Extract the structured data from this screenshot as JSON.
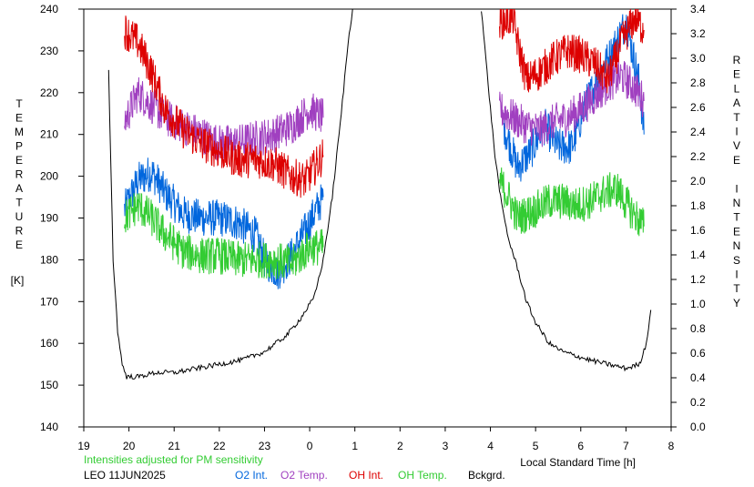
{
  "chart_data": {
    "type": "line",
    "left_axis": {
      "label_letters": [
        "T",
        "E",
        "M",
        "P",
        "E",
        "R",
        "A",
        "T",
        "U",
        "R",
        "E"
      ],
      "unit": "[K]",
      "ylim": [
        140,
        240
      ],
      "ticks": [
        "140",
        "150",
        "160",
        "170",
        "180",
        "190",
        "200",
        "210",
        "220",
        "230",
        "240"
      ]
    },
    "right_axis": {
      "label_words": [
        [
          "R",
          "E",
          "L",
          "A",
          "T",
          "I",
          "V",
          "E"
        ],
        [
          "I",
          "N",
          "T",
          "E",
          "N",
          "S",
          "I",
          "T",
          "Y"
        ]
      ],
      "ylim": [
        0.0,
        3.4
      ],
      "ticks": [
        "0.0",
        "0.2",
        "0.4",
        "0.6",
        "0.8",
        "1.0",
        "1.2",
        "1.4",
        "1.6",
        "1.8",
        "2.0",
        "2.2",
        "2.4",
        "2.6",
        "2.8",
        "3.0",
        "3.2",
        "3.4"
      ]
    },
    "x_axis": {
      "label": "Local Standard Time [h]",
      "ticks": [
        "19",
        "20",
        "21",
        "22",
        "23",
        "0",
        "1",
        "2",
        "3",
        "4",
        "5",
        "6",
        "7",
        "8"
      ],
      "xlim": [
        19,
        32
      ]
    },
    "note": "Intensities adjusted for PM sensitivity",
    "station_date": "LEO 11JUN2025",
    "series": [
      {
        "name": "O2 Int.",
        "color": "#0066dd",
        "axis": "left",
        "segments": [
          {
            "x": [
              19.9,
              20.2,
              20.5,
              20.8,
              21.2,
              21.6,
              22.0,
              22.4,
              22.8,
              23.0,
              23.3,
              23.6,
              23.9,
              24.2,
              24.3
            ],
            "y": [
              192,
              199,
              201,
              196,
              191,
              190,
              190,
              189,
              186,
              180,
              177,
              181,
              187,
              193,
              195
            ]
          },
          {
            "x": [
              28.3,
              28.6,
              28.9,
              29.2,
              29.5,
              29.8,
              30.1,
              30.4,
              30.7,
              31.0,
              31.3,
              31.4
            ],
            "y": [
              212,
              202,
              206,
              212,
              207,
              207,
              217,
              224,
              230,
              237,
              222,
              210
            ]
          }
        ]
      },
      {
        "name": "O2 Temp.",
        "color": "#a040c0",
        "axis": "left",
        "segments": [
          {
            "x": [
              19.9,
              20.2,
              20.5,
              20.8,
              21.2,
              21.6,
              22.0,
              22.4,
              22.8,
              23.2,
              23.6,
              24.0,
              24.3
            ],
            "y": [
              213,
              220,
              217,
              214,
              212,
              210,
              208,
              208,
              209,
              210,
              212,
              216,
              214
            ]
          },
          {
            "x": [
              28.2,
              28.5,
              28.8,
              29.1,
              29.4,
              29.7,
              30.0,
              30.3,
              30.6,
              30.9,
              31.2,
              31.4
            ],
            "y": [
              216,
              214,
              212,
              211,
              213,
              214,
              216,
              219,
              222,
              224,
              221,
              218
            ]
          }
        ]
      },
      {
        "name": "OH Int.",
        "color": "#dd0000",
        "axis": "left",
        "segments": [
          {
            "x": [
              19.9,
              20.2,
              20.5,
              20.8,
              21.2,
              21.6,
              22.0,
              22.4,
              22.8,
              23.2,
              23.6,
              23.9,
              24.1,
              24.3
            ],
            "y": [
              235,
              232,
              225,
              216,
              211,
              208,
              206,
              204,
              204,
              203,
              200,
              199,
              202,
              205
            ]
          },
          {
            "x": [
              28.2,
              28.5,
              28.6,
              28.8,
              29.1,
              29.4,
              29.7,
              30.0,
              30.3,
              30.6,
              30.9,
              31.2,
              31.4
            ],
            "y": [
              237,
              238,
              232,
              223,
              225,
              228,
              230,
              229,
              227,
              223,
              232,
              238,
              235
            ]
          }
        ]
      },
      {
        "name": "OH Temp.",
        "color": "#33cc33",
        "axis": "left",
        "segments": [
          {
            "x": [
              19.9,
              20.2,
              20.5,
              20.8,
              21.2,
              21.6,
              22.0,
              22.4,
              22.8,
              23.2,
              23.6,
              24.0,
              24.3
            ],
            "y": [
              190,
              193,
              190,
              186,
              182,
              181,
              181,
              180,
              180,
              180,
              179,
              183,
              183
            ]
          },
          {
            "x": [
              28.2,
              28.4,
              28.6,
              28.8,
              29.0,
              29.3,
              29.6,
              29.9,
              30.2,
              30.5,
              30.8,
              31.1,
              31.4
            ],
            "y": [
              199,
              195,
              190,
              191,
              192,
              194,
              194,
              193,
              194,
              196,
              197,
              192,
              188
            ]
          }
        ]
      },
      {
        "name": "Bckgrd.",
        "color": "#000000",
        "axis": "left",
        "segments": [
          {
            "x": [
              19.55,
              19.65,
              19.75,
              19.85,
              19.95,
              20.2,
              20.6,
              21.0,
              21.5,
              22.0,
              22.5,
              23.0,
              23.5,
              23.8,
              24.1,
              24.3,
              24.5,
              24.7,
              24.85,
              24.95
            ],
            "y": [
              225,
              180,
              163,
              155,
              152,
              152,
              153,
              153,
              154,
              155,
              156,
              158,
              162,
              166,
              171,
              180,
              195,
              215,
              232,
              240
            ]
          },
          {
            "x": [
              27.8,
              27.95,
              28.1,
              28.25,
              28.4,
              28.6,
              28.8,
              29.0,
              29.3,
              29.6,
              29.9,
              30.2,
              30.6,
              31.0,
              31.3,
              31.45,
              31.55
            ],
            "y": [
              240,
              222,
              205,
              193,
              185,
              178,
              170,
              165,
              160,
              158,
              157,
              156,
              155,
              154,
              155,
              160,
              168
            ]
          }
        ]
      }
    ]
  }
}
